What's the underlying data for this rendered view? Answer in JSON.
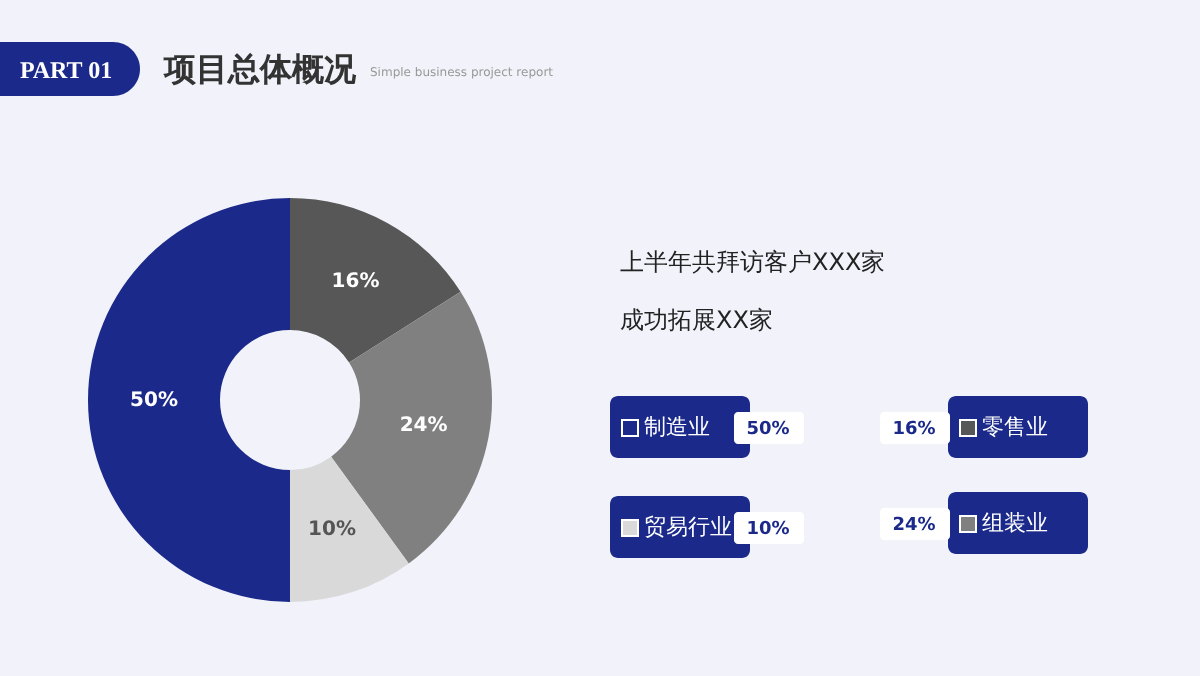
{
  "chart_data": {
    "type": "donut",
    "title": "项目总体概况",
    "subtitle": "Simple business project report",
    "annotations": [
      "PART 01",
      "上半年共拜访客户XXX家",
      "成功拓展XX家"
    ],
    "categories": [
      "零售业",
      "组装业",
      "贸易行业",
      "制造业"
    ],
    "values": [
      16,
      24,
      10,
      50
    ],
    "colors": [
      "#575757",
      "#808080",
      "#d9d9d9",
      "#1b2a8a"
    ],
    "value_labels": [
      "16%",
      "24%",
      "10%",
      "50%"
    ],
    "legend": "right"
  }
}
